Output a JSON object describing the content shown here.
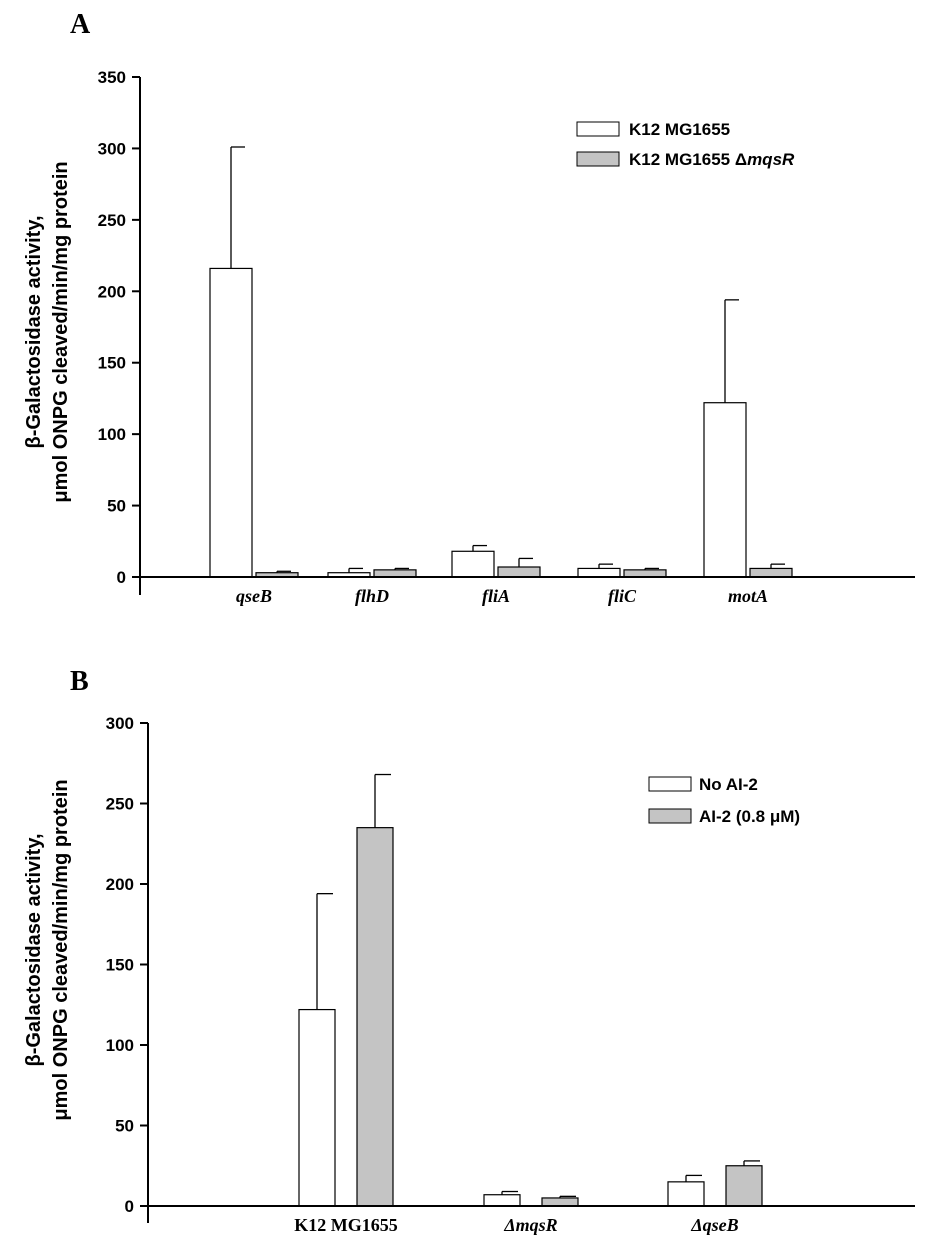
{
  "colors": {
    "series_empty": "#ffffff",
    "series_filled": "#c4c4c4",
    "axis": "#000000"
  },
  "chart_data": [
    {
      "type": "bar",
      "panel_label": "A",
      "ylabel_line1": "β-Galactosidase activity,",
      "ylabel_line2": "μmol ONPG cleaved/min/mg protein",
      "ylim": [
        0,
        350
      ],
      "yticks": [
        "0",
        "50",
        "100",
        "150",
        "200",
        "250",
        "300",
        "350"
      ],
      "categories": [
        "qseB",
        "flhD",
        "fliA",
        "fliC",
        "motA"
      ],
      "legend_position": "top-right",
      "series": [
        {
          "name": "K12 MG1655",
          "values": [
            216,
            3,
            18,
            6,
            122
          ],
          "errors": [
            85,
            3,
            4,
            3,
            72
          ]
        },
        {
          "name": "K12 MG1655 ΔmqsR",
          "name_prefix": "K12 MG1655 Δ",
          "name_italic": "mqsR",
          "values": [
            3,
            5,
            7,
            5,
            6
          ],
          "errors": [
            1,
            1,
            6,
            1,
            3
          ]
        }
      ]
    },
    {
      "type": "bar",
      "panel_label": "B",
      "ylabel_line1": "β-Galactosidase activity,",
      "ylabel_line2": "μmol ONPG cleaved/min/mg protein",
      "ylim": [
        0,
        300
      ],
      "yticks": [
        "0",
        "50",
        "100",
        "150",
        "200",
        "250",
        "300"
      ],
      "categories": [
        "K12 MG1655",
        "ΔmqsR",
        "ΔqseB"
      ],
      "legend_position": "top-right",
      "series": [
        {
          "name": "No AI-2",
          "values": [
            122,
            7,
            15
          ],
          "errors": [
            72,
            2,
            4
          ]
        },
        {
          "name": "AI-2 (0.8 μM)",
          "values": [
            235,
            5,
            25
          ],
          "errors": [
            33,
            1,
            3
          ]
        }
      ]
    }
  ]
}
